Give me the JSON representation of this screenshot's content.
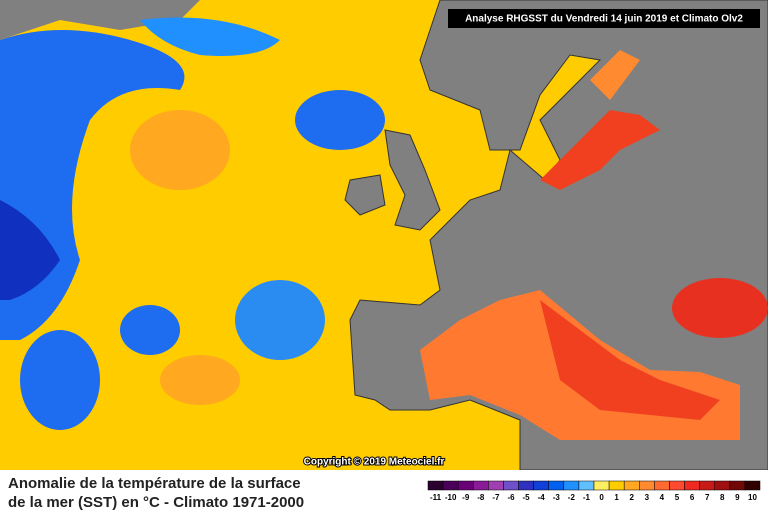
{
  "header": {
    "title": "Analyse RHGSST  du Vendredi 14 juin 2019 et Climato Olv2"
  },
  "copyright": "Copyright © 2019 Meteociel.fr",
  "caption": {
    "line1": "Anomalie de la température de la surface",
    "line2": "de la mer (SST) en °C - Climato 1971-2000"
  },
  "legend": {
    "scale": [
      {
        "value": -11,
        "color": "#2a0030"
      },
      {
        "value": -10,
        "color": "#4a0058"
      },
      {
        "value": -9,
        "color": "#6a0078"
      },
      {
        "value": -8,
        "color": "#8a1a98"
      },
      {
        "value": -7,
        "color": "#a040b0"
      },
      {
        "value": -6,
        "color": "#7050c8"
      },
      {
        "value": -5,
        "color": "#3030c0"
      },
      {
        "value": -4,
        "color": "#1040d8"
      },
      {
        "value": -3,
        "color": "#0060f0"
      },
      {
        "value": -2,
        "color": "#2090ff"
      },
      {
        "value": -1,
        "color": "#60c0ff"
      },
      {
        "value": 0,
        "color": "#ffee60"
      },
      {
        "value": 1,
        "color": "#ffcc00"
      },
      {
        "value": 2,
        "color": "#ffa820"
      },
      {
        "value": 3,
        "color": "#ff8a30"
      },
      {
        "value": 4,
        "color": "#ff6a30"
      },
      {
        "value": 5,
        "color": "#ff4a30"
      },
      {
        "value": 6,
        "color": "#f02a20"
      },
      {
        "value": 7,
        "color": "#c81a18"
      },
      {
        "value": 8,
        "color": "#a01010"
      },
      {
        "value": 9,
        "color": "#700808"
      },
      {
        "value": 10,
        "color": "#300000"
      }
    ]
  }
}
